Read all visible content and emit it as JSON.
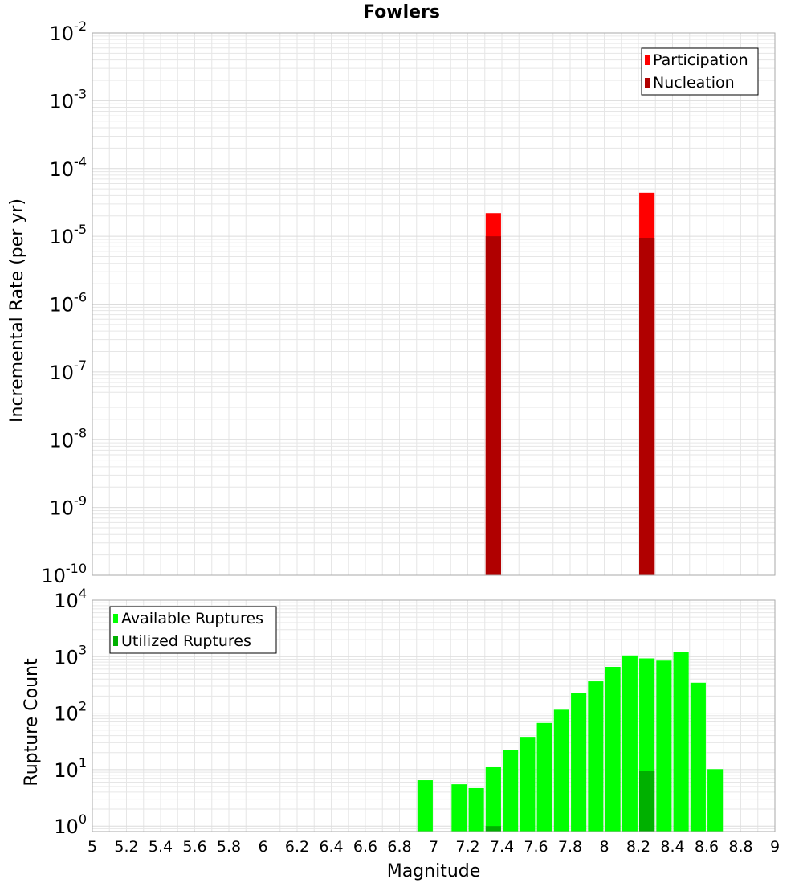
{
  "title": "Fowlers",
  "xlabel": "Magnitude",
  "colors": {
    "participation": "#ff0000",
    "nucleation": "#b00000",
    "available": "#00ff00",
    "utilized": "#00b000",
    "grid": "#e6e6e6",
    "frame": "#aaaaaa"
  },
  "chart_data": [
    {
      "type": "bar",
      "ylabel": "Incremental Rate (per yr)",
      "yscale": "log",
      "ylim": [
        1e-10,
        0.01
      ],
      "xlim": [
        5,
        9
      ],
      "grid": true,
      "legend_position": "top-right",
      "x_ticks": [
        "5",
        "5.2",
        "5.4",
        "5.6",
        "5.8",
        "6",
        "6.2",
        "6.4",
        "6.6",
        "6.8",
        "7",
        "7.2",
        "7.4",
        "7.6",
        "7.8",
        "8",
        "8.2",
        "8.4",
        "8.6",
        "8.8",
        "9"
      ],
      "y_ticks": [
        {
          "base": "10",
          "exp": "-10"
        },
        {
          "base": "10",
          "exp": "-9"
        },
        {
          "base": "10",
          "exp": "-8"
        },
        {
          "base": "10",
          "exp": "-7"
        },
        {
          "base": "10",
          "exp": "-6"
        },
        {
          "base": "10",
          "exp": "-5"
        },
        {
          "base": "10",
          "exp": "-4"
        },
        {
          "base": "10",
          "exp": "-3"
        },
        {
          "base": "10",
          "exp": "-2"
        }
      ],
      "bar_width": 0.09,
      "series": [
        {
          "name": "Participation",
          "color_key": "participation",
          "x": [
            7.35,
            8.25
          ],
          "y": [
            2.2e-05,
            4.4e-05
          ]
        },
        {
          "name": "Nucleation",
          "color_key": "nucleation",
          "x": [
            7.35,
            8.25
          ],
          "y": [
            1e-05,
            9.5e-06
          ]
        }
      ]
    },
    {
      "type": "bar",
      "ylabel": "Rupture Count",
      "yscale": "log",
      "ylim": [
        0.8,
        10000
      ],
      "xlim": [
        5,
        9
      ],
      "grid": true,
      "legend_position": "top-left",
      "y_ticks": [
        {
          "base": "10",
          "exp": "0"
        },
        {
          "base": "10",
          "exp": "1"
        },
        {
          "base": "10",
          "exp": "2"
        },
        {
          "base": "10",
          "exp": "3"
        },
        {
          "base": "10",
          "exp": "4"
        }
      ],
      "bar_width": 0.09,
      "series": [
        {
          "name": "Available Ruptures",
          "color_key": "available",
          "x": [
            6.95,
            7.15,
            7.25,
            7.35,
            7.45,
            7.55,
            7.65,
            7.75,
            7.85,
            7.95,
            8.05,
            8.15,
            8.25,
            8.35,
            8.45,
            8.55,
            8.65
          ],
          "y": [
            6.5,
            5.5,
            4.7,
            11,
            22,
            38,
            67,
            115,
            230,
            365,
            660,
            1050,
            930,
            850,
            1220,
            345,
            10.2
          ]
        },
        {
          "name": "Utilized Ruptures",
          "color_key": "utilized",
          "x": [
            7.35,
            8.25
          ],
          "y": [
            1.0,
            9.5
          ]
        }
      ]
    }
  ]
}
